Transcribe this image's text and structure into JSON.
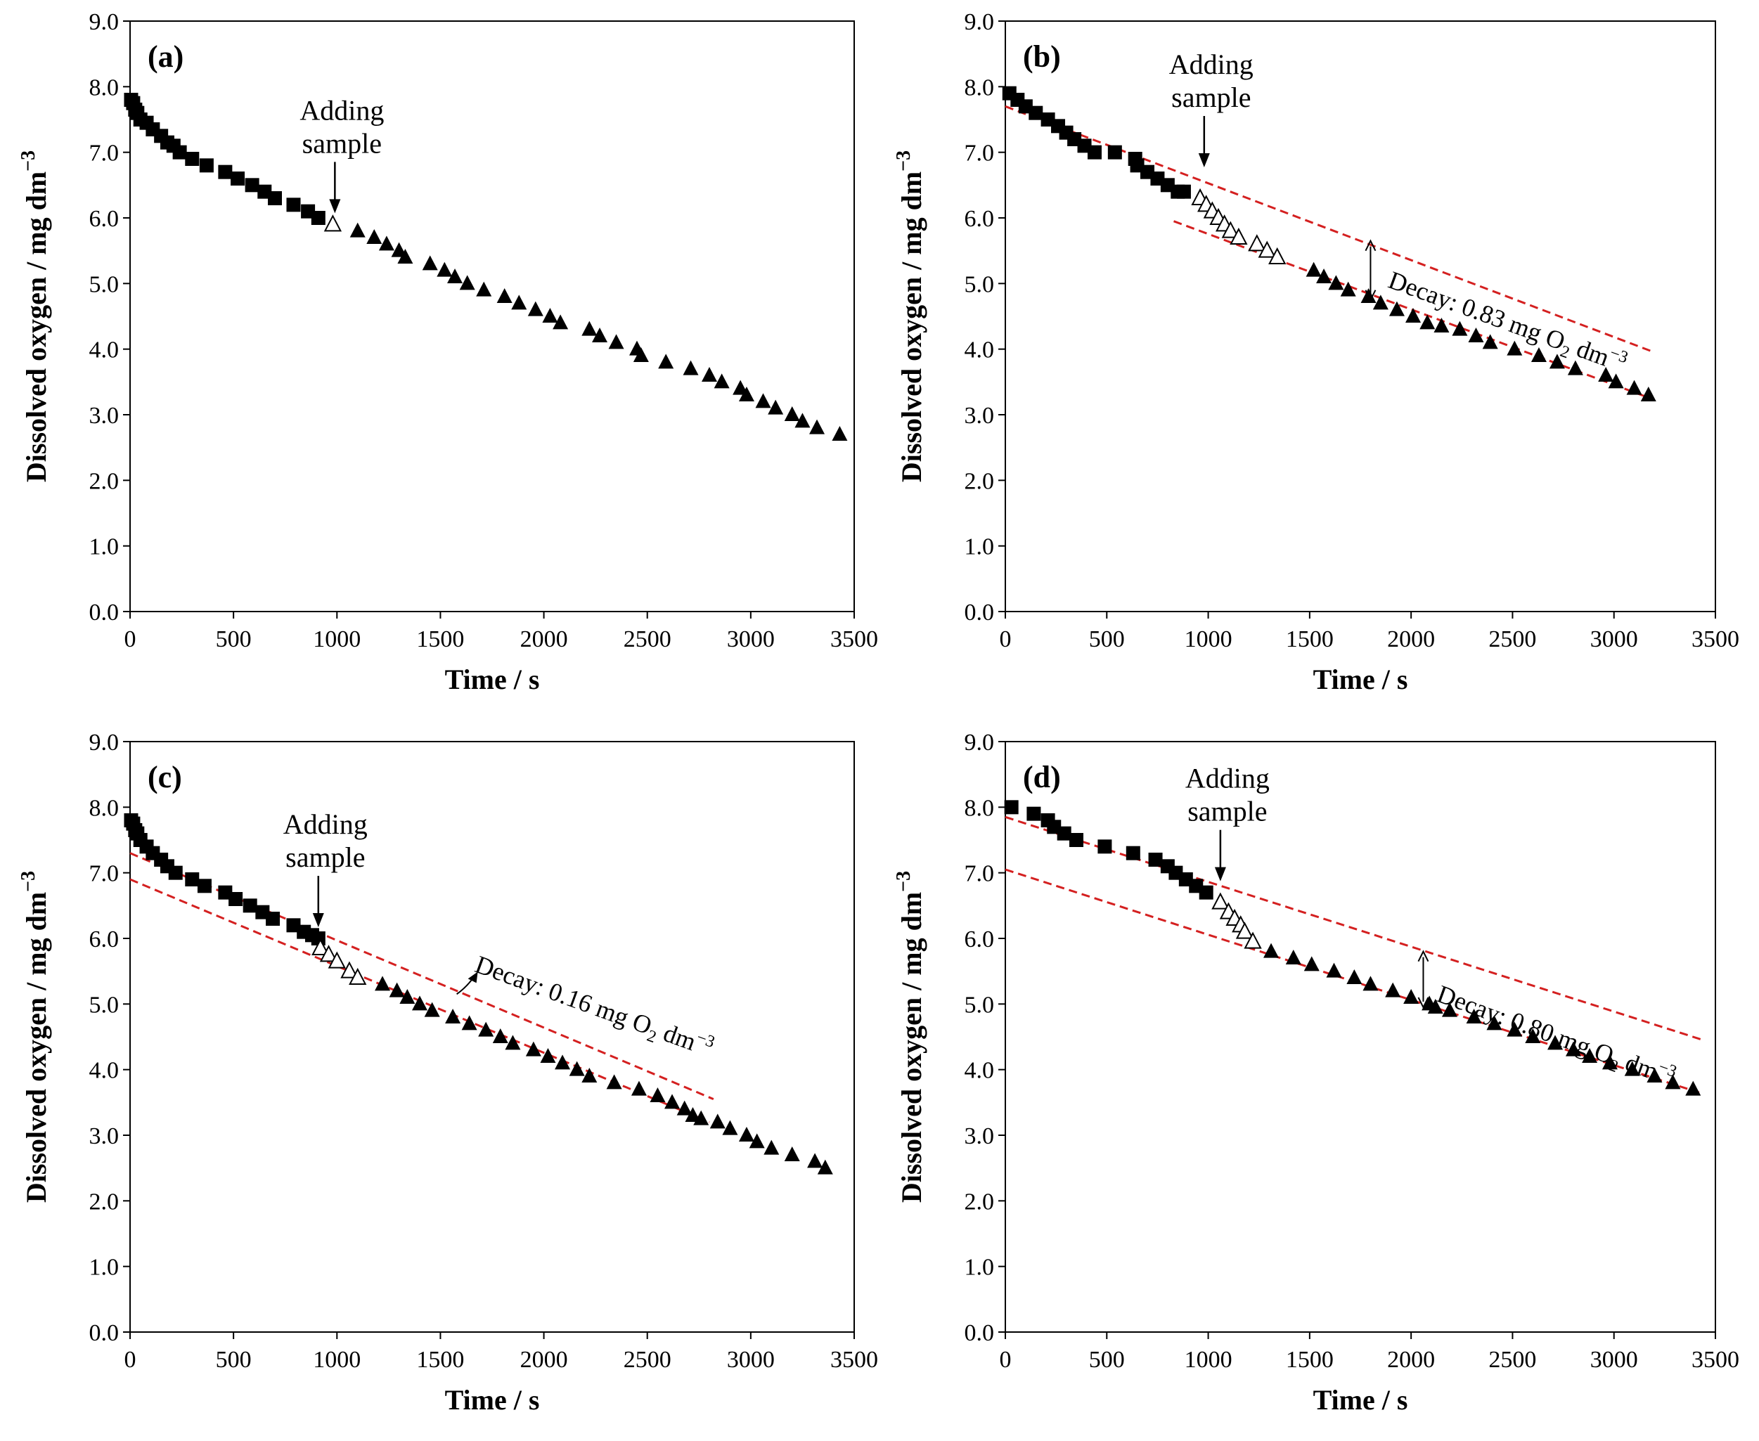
{
  "colors": {
    "axis": "#000000",
    "marker": "#000000",
    "fit_line": "#d42020",
    "background": "#ffffff"
  },
  "chart_data": [
    {
      "type": "scatter",
      "panel_label": "(a)",
      "xlabel": "Time / s",
      "ylabel": "Dissolved oxygen / mg dm",
      "ylabel_sup": "−3",
      "xlim": [
        0,
        3500
      ],
      "ylim": [
        0,
        9
      ],
      "xticks": [
        "0",
        "500",
        "1000",
        "1500",
        "2000",
        "2500",
        "3000",
        "3500"
      ],
      "yticks": [
        "0.0",
        "1.0",
        "2.0",
        "3.0",
        "4.0",
        "5.0",
        "6.0",
        "7.0",
        "8.0",
        "9.0"
      ],
      "annotation": {
        "line1": "Adding",
        "line2": "sample",
        "x": 990,
        "y": 6.05
      },
      "series": [
        {
          "name": "before sample",
          "marker": "filled-square",
          "points": [
            [
              5,
              7.8
            ],
            [
              15,
              7.75
            ],
            [
              25,
              7.65
            ],
            [
              35,
              7.6
            ],
            [
              50,
              7.5
            ],
            [
              80,
              7.45
            ],
            [
              110,
              7.35
            ],
            [
              150,
              7.25
            ],
            [
              180,
              7.15
            ],
            [
              210,
              7.1
            ],
            [
              240,
              7.0
            ],
            [
              300,
              6.9
            ],
            [
              370,
              6.8
            ],
            [
              460,
              6.7
            ],
            [
              520,
              6.6
            ],
            [
              590,
              6.5
            ],
            [
              650,
              6.4
            ],
            [
              700,
              6.3
            ],
            [
              790,
              6.2
            ],
            [
              860,
              6.1
            ],
            [
              910,
              6.0
            ]
          ]
        },
        {
          "name": "sample added",
          "marker": "open-triangle",
          "points": [
            [
              980,
              5.9
            ]
          ]
        },
        {
          "name": "after sample",
          "marker": "filled-triangle",
          "points": [
            [
              1100,
              5.8
            ],
            [
              1180,
              5.7
            ],
            [
              1240,
              5.6
            ],
            [
              1300,
              5.5
            ],
            [
              1330,
              5.4
            ],
            [
              1450,
              5.3
            ],
            [
              1520,
              5.2
            ],
            [
              1570,
              5.1
            ],
            [
              1630,
              5.0
            ],
            [
              1710,
              4.9
            ],
            [
              1810,
              4.8
            ],
            [
              1880,
              4.7
            ],
            [
              1960,
              4.6
            ],
            [
              2030,
              4.5
            ],
            [
              2080,
              4.4
            ],
            [
              2220,
              4.3
            ],
            [
              2270,
              4.2
            ],
            [
              2350,
              4.1
            ],
            [
              2450,
              4.0
            ],
            [
              2470,
              3.9
            ],
            [
              2590,
              3.8
            ],
            [
              2710,
              3.7
            ],
            [
              2800,
              3.6
            ],
            [
              2860,
              3.5
            ],
            [
              2950,
              3.4
            ],
            [
              2980,
              3.3
            ],
            [
              3060,
              3.2
            ],
            [
              3120,
              3.1
            ],
            [
              3200,
              3.0
            ],
            [
              3250,
              2.9
            ],
            [
              3320,
              2.8
            ],
            [
              3430,
              2.7
            ]
          ]
        }
      ],
      "fit_lines": [],
      "decay": null
    },
    {
      "type": "scatter",
      "panel_label": "(b)",
      "xlabel": "Time / s",
      "ylabel": "Dissolved oxygen / mg dm",
      "ylabel_sup": "−3",
      "xlim": [
        0,
        3500
      ],
      "ylim": [
        0,
        9
      ],
      "xticks": [
        "0",
        "500",
        "1000",
        "1500",
        "2000",
        "2500",
        "3000",
        "3500"
      ],
      "yticks": [
        "0.0",
        "1.0",
        "2.0",
        "3.0",
        "4.0",
        "5.0",
        "6.0",
        "7.0",
        "8.0",
        "9.0"
      ],
      "annotation": {
        "line1": "Adding",
        "line2": "sample",
        "x": 980,
        "y": 6.75
      },
      "series": [
        {
          "name": "before sample",
          "marker": "filled-square",
          "points": [
            [
              20,
              7.9
            ],
            [
              60,
              7.8
            ],
            [
              100,
              7.7
            ],
            [
              150,
              7.6
            ],
            [
              210,
              7.5
            ],
            [
              260,
              7.4
            ],
            [
              300,
              7.3
            ],
            [
              340,
              7.2
            ],
            [
              390,
              7.1
            ],
            [
              440,
              7.0
            ],
            [
              540,
              7.0
            ],
            [
              640,
              6.9
            ],
            [
              650,
              6.8
            ],
            [
              700,
              6.7
            ],
            [
              750,
              6.6
            ],
            [
              800,
              6.5
            ],
            [
              850,
              6.4
            ],
            [
              880,
              6.4
            ]
          ]
        },
        {
          "name": "sample added",
          "marker": "open-triangle",
          "points": [
            [
              960,
              6.3
            ],
            [
              990,
              6.2
            ],
            [
              1020,
              6.1
            ],
            [
              1050,
              6.0
            ],
            [
              1080,
              5.9
            ],
            [
              1110,
              5.8
            ],
            [
              1150,
              5.7
            ],
            [
              1240,
              5.6
            ],
            [
              1290,
              5.5
            ],
            [
              1340,
              5.4
            ]
          ]
        },
        {
          "name": "after sample",
          "marker": "filled-triangle",
          "points": [
            [
              1520,
              5.2
            ],
            [
              1570,
              5.1
            ],
            [
              1630,
              5.0
            ],
            [
              1690,
              4.9
            ],
            [
              1790,
              4.8
            ],
            [
              1850,
              4.7
            ],
            [
              1930,
              4.6
            ],
            [
              2010,
              4.5
            ],
            [
              2080,
              4.4
            ],
            [
              2150,
              4.35
            ],
            [
              2240,
              4.3
            ],
            [
              2320,
              4.2
            ],
            [
              2390,
              4.1
            ],
            [
              2510,
              4.0
            ],
            [
              2630,
              3.9
            ],
            [
              2720,
              3.8
            ],
            [
              2810,
              3.7
            ],
            [
              2960,
              3.6
            ],
            [
              3010,
              3.5
            ],
            [
              3100,
              3.4
            ],
            [
              3170,
              3.3
            ]
          ]
        }
      ],
      "fit_lines": [
        {
          "from": [
            0,
            7.7
          ],
          "to": [
            3200,
            3.95
          ]
        },
        {
          "from": [
            830,
            5.95
          ],
          "to": [
            3180,
            3.25
          ]
        }
      ],
      "decay": {
        "label": "Decay: 0.83 mg O",
        "sub": "2",
        "tail": " dm",
        "sup": "−3",
        "x": 1800,
        "y": 5.65,
        "y2": 4.75,
        "text_x": 1880,
        "text_y": 4.95,
        "angle": 20
      }
    },
    {
      "type": "scatter",
      "panel_label": "(c)",
      "xlabel": "Time / s",
      "ylabel": "Dissolved oxygen / mg dm",
      "ylabel_sup": "−3",
      "xlim": [
        0,
        3500
      ],
      "ylim": [
        0,
        9
      ],
      "xticks": [
        "0",
        "500",
        "1000",
        "1500",
        "2000",
        "2500",
        "3000",
        "3500"
      ],
      "yticks": [
        "0.0",
        "1.0",
        "2.0",
        "3.0",
        "4.0",
        "5.0",
        "6.0",
        "7.0",
        "8.0",
        "9.0"
      ],
      "annotation": {
        "line1": "Adding",
        "line2": "sample",
        "x": 910,
        "y": 6.15
      },
      "series": [
        {
          "name": "before sample",
          "marker": "filled-square",
          "points": [
            [
              5,
              7.8
            ],
            [
              15,
              7.75
            ],
            [
              25,
              7.65
            ],
            [
              35,
              7.6
            ],
            [
              50,
              7.5
            ],
            [
              80,
              7.4
            ],
            [
              110,
              7.3
            ],
            [
              150,
              7.2
            ],
            [
              180,
              7.1
            ],
            [
              220,
              7.0
            ],
            [
              300,
              6.9
            ],
            [
              360,
              6.8
            ],
            [
              460,
              6.7
            ],
            [
              510,
              6.6
            ],
            [
              580,
              6.5
            ],
            [
              640,
              6.4
            ],
            [
              690,
              6.3
            ],
            [
              790,
              6.2
            ],
            [
              840,
              6.1
            ],
            [
              880,
              6.05
            ],
            [
              910,
              6.0
            ]
          ]
        },
        {
          "name": "sample added",
          "marker": "open-triangle",
          "points": [
            [
              920,
              5.85
            ],
            [
              960,
              5.75
            ],
            [
              1000,
              5.65
            ],
            [
              1060,
              5.5
            ],
            [
              1100,
              5.4
            ]
          ]
        },
        {
          "name": "after sample",
          "marker": "filled-triangle",
          "points": [
            [
              1220,
              5.3
            ],
            [
              1290,
              5.2
            ],
            [
              1340,
              5.1
            ],
            [
              1400,
              5.0
            ],
            [
              1460,
              4.9
            ],
            [
              1560,
              4.8
            ],
            [
              1640,
              4.7
            ],
            [
              1720,
              4.6
            ],
            [
              1790,
              4.5
            ],
            [
              1850,
              4.4
            ],
            [
              1950,
              4.3
            ],
            [
              2020,
              4.2
            ],
            [
              2090,
              4.1
            ],
            [
              2160,
              4.0
            ],
            [
              2220,
              3.9
            ],
            [
              2340,
              3.8
            ],
            [
              2460,
              3.7
            ],
            [
              2550,
              3.6
            ],
            [
              2620,
              3.5
            ],
            [
              2680,
              3.4
            ],
            [
              2720,
              3.3
            ],
            [
              2760,
              3.25
            ],
            [
              2840,
              3.2
            ],
            [
              2900,
              3.1
            ],
            [
              2980,
              3.0
            ],
            [
              3030,
              2.9
            ],
            [
              3100,
              2.8
            ],
            [
              3200,
              2.7
            ],
            [
              3310,
              2.6
            ],
            [
              3360,
              2.5
            ]
          ]
        }
      ],
      "fit_lines": [
        {
          "from": [
            0,
            7.3
          ],
          "to": [
            2820,
            3.55
          ]
        },
        {
          "from": [
            0,
            6.9
          ],
          "to": [
            2800,
            3.2
          ]
        }
      ],
      "decay": {
        "label": "Decay: 0.16 mg O",
        "sub": "2",
        "tail": " dm",
        "sup": "−3",
        "x": 1640,
        "y": 5.3,
        "y2": null,
        "text_x": 1660,
        "text_y": 5.5,
        "angle": 20
      }
    },
    {
      "type": "scatter",
      "panel_label": "(d)",
      "xlabel": "Time / s",
      "ylabel": "Dissolved oxygen / mg dm",
      "ylabel_sup": "−3",
      "xlim": [
        0,
        3500
      ],
      "ylim": [
        0,
        9
      ],
      "xticks": [
        "0",
        "500",
        "1000",
        "1500",
        "2000",
        "2500",
        "3000",
        "3500"
      ],
      "yticks": [
        "0.0",
        "1.0",
        "2.0",
        "3.0",
        "4.0",
        "5.0",
        "6.0",
        "7.0",
        "8.0",
        "9.0"
      ],
      "annotation": {
        "line1": "Adding",
        "line2": "sample",
        "x": 1060,
        "y": 6.85
      },
      "series": [
        {
          "name": "before sample",
          "marker": "filled-square",
          "points": [
            [
              30,
              8.0
            ],
            [
              140,
              7.9
            ],
            [
              210,
              7.8
            ],
            [
              240,
              7.7
            ],
            [
              290,
              7.6
            ],
            [
              350,
              7.5
            ],
            [
              490,
              7.4
            ],
            [
              630,
              7.3
            ],
            [
              740,
              7.2
            ],
            [
              800,
              7.1
            ],
            [
              840,
              7.0
            ],
            [
              890,
              6.9
            ],
            [
              940,
              6.8
            ],
            [
              990,
              6.7
            ]
          ]
        },
        {
          "name": "sample added",
          "marker": "open-triangle",
          "points": [
            [
              1060,
              6.55
            ],
            [
              1100,
              6.4
            ],
            [
              1130,
              6.3
            ],
            [
              1160,
              6.2
            ],
            [
              1180,
              6.1
            ],
            [
              1220,
              5.95
            ]
          ]
        },
        {
          "name": "after sample",
          "marker": "filled-triangle",
          "points": [
            [
              1310,
              5.8
            ],
            [
              1420,
              5.7
            ],
            [
              1510,
              5.6
            ],
            [
              1620,
              5.5
            ],
            [
              1720,
              5.4
            ],
            [
              1800,
              5.3
            ],
            [
              1910,
              5.2
            ],
            [
              2000,
              5.1
            ],
            [
              2090,
              5.0
            ],
            [
              2120,
              4.95
            ],
            [
              2190,
              4.9
            ],
            [
              2310,
              4.8
            ],
            [
              2410,
              4.7
            ],
            [
              2510,
              4.6
            ],
            [
              2600,
              4.5
            ],
            [
              2710,
              4.4
            ],
            [
              2800,
              4.3
            ],
            [
              2880,
              4.2
            ],
            [
              2980,
              4.1
            ],
            [
              3090,
              4.0
            ],
            [
              3200,
              3.9
            ],
            [
              3290,
              3.8
            ],
            [
              3390,
              3.7
            ]
          ]
        }
      ],
      "fit_lines": [
        {
          "from": [
            0,
            7.85
          ],
          "to": [
            3440,
            4.45
          ]
        },
        {
          "from": [
            0,
            7.05
          ],
          "to": [
            3420,
            3.65
          ]
        }
      ],
      "decay": {
        "label": "Decay: 0.80 mg O",
        "sub": "2",
        "tail": " dm",
        "sup": "−3",
        "x": 2060,
        "y": 5.8,
        "y2": 4.95,
        "text_x": 2120,
        "text_y": 5.05,
        "angle": 20
      }
    }
  ]
}
